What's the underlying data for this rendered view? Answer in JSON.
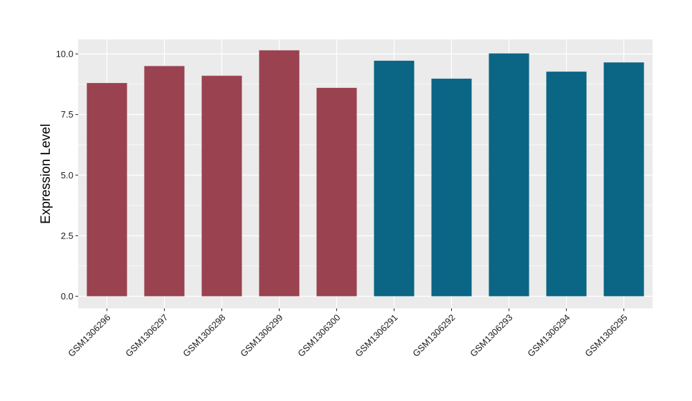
{
  "chart_data": {
    "type": "bar",
    "title": "",
    "xlabel": "",
    "ylabel": "Expression Level",
    "categories": [
      "GSM1306296",
      "GSM1306297",
      "GSM1306298",
      "GSM1306299",
      "GSM1306300",
      "GSM1306291",
      "GSM1306292",
      "GSM1306293",
      "GSM1306294",
      "GSM1306295"
    ],
    "values": [
      8.8,
      9.5,
      9.1,
      10.15,
      8.6,
      9.72,
      8.98,
      10.02,
      9.27,
      9.65
    ],
    "bar_colors": [
      "#9a4250",
      "#9a4250",
      "#9a4250",
      "#9a4250",
      "#9a4250",
      "#0b6584",
      "#0b6584",
      "#0b6584",
      "#0b6584",
      "#0b6584"
    ],
    "ylim": [
      -0.5,
      10.6
    ],
    "yticks": [
      0.0,
      2.5,
      5.0,
      7.5,
      10.0
    ],
    "ytick_labels": [
      "0.0",
      "2.5",
      "5.0",
      "7.5",
      "10.0"
    ],
    "grid": true,
    "legend": "none",
    "panel_background": "#ebebeb",
    "grid_color": "#ffffff"
  }
}
